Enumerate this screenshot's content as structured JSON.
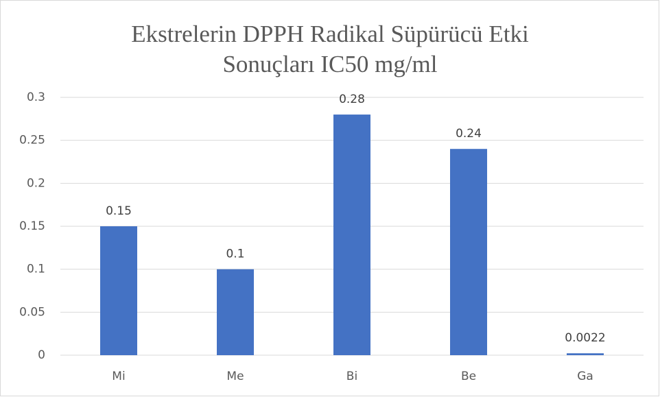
{
  "chart_data": {
    "type": "bar",
    "title": "Ekstrelerin DPPH Radikal Süpürücü Etki Sonuçları IC50 mg/ml",
    "categories": [
      "Mi",
      "Me",
      "Bi",
      "Be",
      "Ga"
    ],
    "values": [
      0.15,
      0.1,
      0.28,
      0.24,
      0.0022
    ],
    "color": "#4472c4",
    "ylim": [
      0,
      0.3
    ],
    "yticks": [
      0,
      0.05,
      0.1,
      0.15,
      0.2,
      0.25,
      0.3
    ],
    "grid": true
  }
}
